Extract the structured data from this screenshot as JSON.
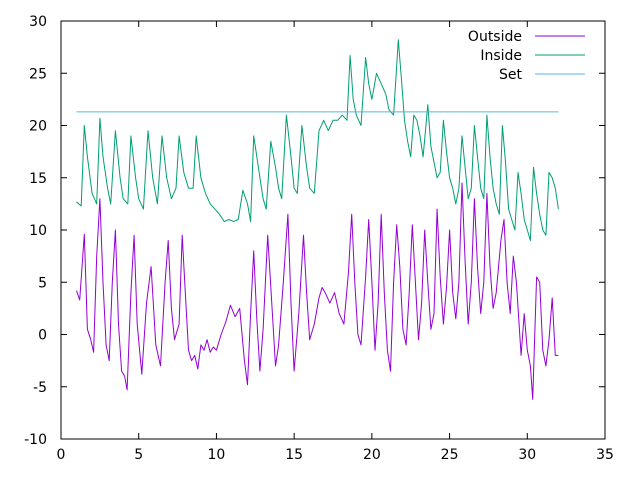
{
  "chart_data": {
    "type": "line",
    "title": "",
    "xlabel": "",
    "ylabel": "",
    "xlim": [
      0,
      35
    ],
    "ylim": [
      -10,
      30
    ],
    "xticks": [
      0,
      5,
      10,
      15,
      20,
      25,
      30,
      35
    ],
    "yticks": [
      -10,
      -5,
      0,
      5,
      10,
      15,
      20,
      25,
      30
    ],
    "grid": false,
    "legend_position": "top-right",
    "series": [
      {
        "name": "Outside",
        "color": "#9400d3",
        "points": [
          [
            1.0,
            4.2
          ],
          [
            1.2,
            3.3
          ],
          [
            1.5,
            9.6
          ],
          [
            1.7,
            0.5
          ],
          [
            1.9,
            -0.4
          ],
          [
            2.1,
            -1.7
          ],
          [
            2.3,
            7.5
          ],
          [
            2.5,
            13.0
          ],
          [
            2.7,
            5.0
          ],
          [
            2.9,
            -1.0
          ],
          [
            3.1,
            -2.5
          ],
          [
            3.3,
            5.0
          ],
          [
            3.5,
            10.0
          ],
          [
            3.7,
            1.0
          ],
          [
            3.9,
            -3.5
          ],
          [
            4.1,
            -4.0
          ],
          [
            4.25,
            -5.3
          ],
          [
            4.5,
            4.0
          ],
          [
            4.7,
            9.5
          ],
          [
            4.9,
            1.0
          ],
          [
            5.2,
            -3.8
          ],
          [
            5.5,
            3.0
          ],
          [
            5.8,
            6.5
          ],
          [
            6.1,
            -1.0
          ],
          [
            6.4,
            -3.0
          ],
          [
            6.7,
            5.0
          ],
          [
            6.9,
            9.0
          ],
          [
            7.1,
            2.5
          ],
          [
            7.3,
            -0.5
          ],
          [
            7.6,
            1.0
          ],
          [
            7.8,
            9.5
          ],
          [
            8.0,
            4.0
          ],
          [
            8.2,
            -1.5
          ],
          [
            8.4,
            -2.5
          ],
          [
            8.6,
            -2.0
          ],
          [
            8.8,
            -3.3
          ],
          [
            9.0,
            -1.0
          ],
          [
            9.2,
            -1.5
          ],
          [
            9.4,
            -0.5
          ],
          [
            9.6,
            -1.7
          ],
          [
            9.8,
            -1.2
          ],
          [
            10.0,
            -1.5
          ],
          [
            10.3,
            0.0
          ],
          [
            10.6,
            1.2
          ],
          [
            10.9,
            2.8
          ],
          [
            11.2,
            1.7
          ],
          [
            11.5,
            2.5
          ],
          [
            11.8,
            -2.5
          ],
          [
            12.0,
            -4.8
          ],
          [
            12.2,
            2.0
          ],
          [
            12.4,
            8.0
          ],
          [
            12.6,
            1.5
          ],
          [
            12.8,
            -3.5
          ],
          [
            13.0,
            0.5
          ],
          [
            13.3,
            9.5
          ],
          [
            13.6,
            2.0
          ],
          [
            13.8,
            -3.0
          ],
          [
            14.0,
            -1.0
          ],
          [
            14.3,
            5.0
          ],
          [
            14.6,
            11.5
          ],
          [
            14.8,
            3.0
          ],
          [
            15.0,
            -3.5
          ],
          [
            15.3,
            2.0
          ],
          [
            15.6,
            9.5
          ],
          [
            15.8,
            4.0
          ],
          [
            16.0,
            -0.5
          ],
          [
            16.3,
            1.0
          ],
          [
            16.6,
            3.5
          ],
          [
            16.8,
            4.5
          ],
          [
            17.0,
            4.0
          ],
          [
            17.3,
            3.0
          ],
          [
            17.6,
            4.0
          ],
          [
            17.9,
            2.0
          ],
          [
            18.2,
            1.0
          ],
          [
            18.5,
            6.0
          ],
          [
            18.7,
            11.5
          ],
          [
            18.9,
            5.0
          ],
          [
            19.1,
            0.0
          ],
          [
            19.3,
            -1.0
          ],
          [
            19.6,
            5.5
          ],
          [
            19.8,
            11.0
          ],
          [
            20.0,
            5.0
          ],
          [
            20.2,
            -1.5
          ],
          [
            20.4,
            3.0
          ],
          [
            20.6,
            11.5
          ],
          [
            20.8,
            4.0
          ],
          [
            21.0,
            -1.5
          ],
          [
            21.2,
            -3.5
          ],
          [
            21.4,
            5.0
          ],
          [
            21.6,
            10.5
          ],
          [
            21.8,
            6.5
          ],
          [
            22.0,
            0.5
          ],
          [
            22.2,
            -1.0
          ],
          [
            22.4,
            4.0
          ],
          [
            22.6,
            10.5
          ],
          [
            22.8,
            5.0
          ],
          [
            23.0,
            -0.5
          ],
          [
            23.2,
            3.0
          ],
          [
            23.4,
            10.0
          ],
          [
            23.6,
            5.0
          ],
          [
            23.8,
            0.5
          ],
          [
            24.0,
            2.0
          ],
          [
            24.2,
            12.0
          ],
          [
            24.4,
            5.5
          ],
          [
            24.6,
            1.0
          ],
          [
            24.8,
            4.5
          ],
          [
            25.0,
            10.0
          ],
          [
            25.2,
            4.0
          ],
          [
            25.4,
            1.5
          ],
          [
            25.6,
            5.0
          ],
          [
            25.8,
            14.5
          ],
          [
            26.0,
            7.0
          ],
          [
            26.2,
            1.0
          ],
          [
            26.4,
            5.0
          ],
          [
            26.6,
            13.0
          ],
          [
            26.8,
            6.5
          ],
          [
            27.0,
            2.0
          ],
          [
            27.2,
            5.0
          ],
          [
            27.4,
            13.5
          ],
          [
            27.6,
            6.5
          ],
          [
            27.8,
            2.5
          ],
          [
            28.0,
            4.0
          ],
          [
            28.3,
            9.0
          ],
          [
            28.5,
            11.0
          ],
          [
            28.7,
            5.0
          ],
          [
            28.9,
            2.0
          ],
          [
            29.1,
            7.5
          ],
          [
            29.3,
            5.0
          ],
          [
            29.6,
            -2.0
          ],
          [
            29.8,
            2.0
          ],
          [
            30.0,
            -1.5
          ],
          [
            30.2,
            -3.0
          ],
          [
            30.35,
            -6.2
          ],
          [
            30.6,
            5.5
          ],
          [
            30.8,
            5.0
          ],
          [
            31.0,
            -1.5
          ],
          [
            31.2,
            -3.0
          ],
          [
            31.4,
            -0.5
          ],
          [
            31.6,
            3.5
          ],
          [
            31.8,
            -2.0
          ],
          [
            32.0,
            -2.0
          ]
        ]
      },
      {
        "name": "Inside",
        "color": "#009e73",
        "points": [
          [
            1.0,
            12.7
          ],
          [
            1.3,
            12.3
          ],
          [
            1.5,
            20.0
          ],
          [
            1.7,
            17.0
          ],
          [
            2.0,
            13.5
          ],
          [
            2.3,
            12.5
          ],
          [
            2.5,
            20.7
          ],
          [
            2.7,
            17.0
          ],
          [
            3.0,
            14.0
          ],
          [
            3.2,
            12.5
          ],
          [
            3.5,
            19.5
          ],
          [
            3.8,
            15.0
          ],
          [
            4.0,
            13.0
          ],
          [
            4.3,
            12.5
          ],
          [
            4.5,
            19.0
          ],
          [
            4.8,
            15.0
          ],
          [
            5.0,
            13.0
          ],
          [
            5.3,
            12.0
          ],
          [
            5.6,
            19.5
          ],
          [
            5.9,
            15.0
          ],
          [
            6.2,
            12.5
          ],
          [
            6.5,
            19.0
          ],
          [
            6.8,
            15.0
          ],
          [
            7.1,
            13.0
          ],
          [
            7.4,
            14.0
          ],
          [
            7.6,
            19.0
          ],
          [
            7.9,
            15.5
          ],
          [
            8.2,
            14.0
          ],
          [
            8.5,
            14.0
          ],
          [
            8.7,
            19.0
          ],
          [
            9.0,
            15.0
          ],
          [
            9.3,
            13.5
          ],
          [
            9.6,
            12.5
          ],
          [
            9.9,
            12.0
          ],
          [
            10.2,
            11.5
          ],
          [
            10.5,
            10.8
          ],
          [
            10.8,
            11.0
          ],
          [
            11.1,
            10.8
          ],
          [
            11.4,
            11.0
          ],
          [
            11.7,
            13.8
          ],
          [
            12.0,
            12.5
          ],
          [
            12.2,
            10.8
          ],
          [
            12.4,
            19.0
          ],
          [
            12.7,
            16.0
          ],
          [
            13.0,
            13.0
          ],
          [
            13.2,
            12.0
          ],
          [
            13.5,
            18.5
          ],
          [
            13.8,
            16.0
          ],
          [
            14.0,
            14.0
          ],
          [
            14.2,
            13.0
          ],
          [
            14.5,
            21.0
          ],
          [
            14.8,
            17.0
          ],
          [
            15.0,
            14.0
          ],
          [
            15.2,
            13.5
          ],
          [
            15.5,
            20.0
          ],
          [
            15.8,
            16.0
          ],
          [
            16.0,
            14.0
          ],
          [
            16.3,
            13.5
          ],
          [
            16.6,
            19.5
          ],
          [
            16.9,
            20.5
          ],
          [
            17.2,
            19.5
          ],
          [
            17.5,
            20.5
          ],
          [
            17.8,
            20.5
          ],
          [
            18.1,
            21.0
          ],
          [
            18.4,
            20.5
          ],
          [
            18.6,
            26.7
          ],
          [
            18.8,
            22.5
          ],
          [
            19.0,
            21.0
          ],
          [
            19.3,
            20.0
          ],
          [
            19.6,
            26.5
          ],
          [
            19.8,
            24.0
          ],
          [
            20.0,
            22.5
          ],
          [
            20.3,
            25.0
          ],
          [
            20.6,
            24.0
          ],
          [
            20.9,
            23.0
          ],
          [
            21.1,
            21.5
          ],
          [
            21.4,
            21.0
          ],
          [
            21.7,
            28.2
          ],
          [
            21.9,
            24.5
          ],
          [
            22.1,
            20.5
          ],
          [
            22.3,
            18.5
          ],
          [
            22.5,
            17.0
          ],
          [
            22.7,
            21.0
          ],
          [
            22.9,
            20.5
          ],
          [
            23.1,
            19.0
          ],
          [
            23.3,
            17.0
          ],
          [
            23.6,
            22.0
          ],
          [
            23.8,
            18.0
          ],
          [
            24.0,
            16.5
          ],
          [
            24.2,
            15.0
          ],
          [
            24.4,
            15.5
          ],
          [
            24.6,
            20.5
          ],
          [
            24.8,
            17.5
          ],
          [
            25.0,
            15.0
          ],
          [
            25.2,
            14.0
          ],
          [
            25.4,
            12.5
          ],
          [
            25.6,
            14.0
          ],
          [
            25.8,
            19.0
          ],
          [
            26.0,
            16.0
          ],
          [
            26.2,
            13.0
          ],
          [
            26.4,
            14.0
          ],
          [
            26.6,
            20.0
          ],
          [
            26.8,
            17.0
          ],
          [
            27.0,
            14.0
          ],
          [
            27.2,
            13.0
          ],
          [
            27.4,
            21.0
          ],
          [
            27.6,
            17.0
          ],
          [
            27.8,
            14.0
          ],
          [
            28.0,
            12.5
          ],
          [
            28.2,
            11.5
          ],
          [
            28.4,
            20.0
          ],
          [
            28.6,
            16.5
          ],
          [
            28.8,
            12.0
          ],
          [
            29.0,
            11.0
          ],
          [
            29.2,
            10.0
          ],
          [
            29.4,
            15.5
          ],
          [
            29.6,
            13.5
          ],
          [
            29.8,
            11.0
          ],
          [
            30.0,
            10.0
          ],
          [
            30.2,
            9.0
          ],
          [
            30.4,
            16.0
          ],
          [
            30.6,
            13.5
          ],
          [
            30.8,
            11.5
          ],
          [
            31.0,
            10.0
          ],
          [
            31.2,
            9.5
          ],
          [
            31.4,
            15.5
          ],
          [
            31.6,
            15.0
          ],
          [
            31.8,
            14.0
          ],
          [
            32.0,
            12.0
          ]
        ]
      },
      {
        "name": "Set",
        "color": "#56b4e9",
        "points": [
          [
            1.0,
            21.3
          ],
          [
            32.0,
            21.3
          ]
        ]
      }
    ]
  }
}
